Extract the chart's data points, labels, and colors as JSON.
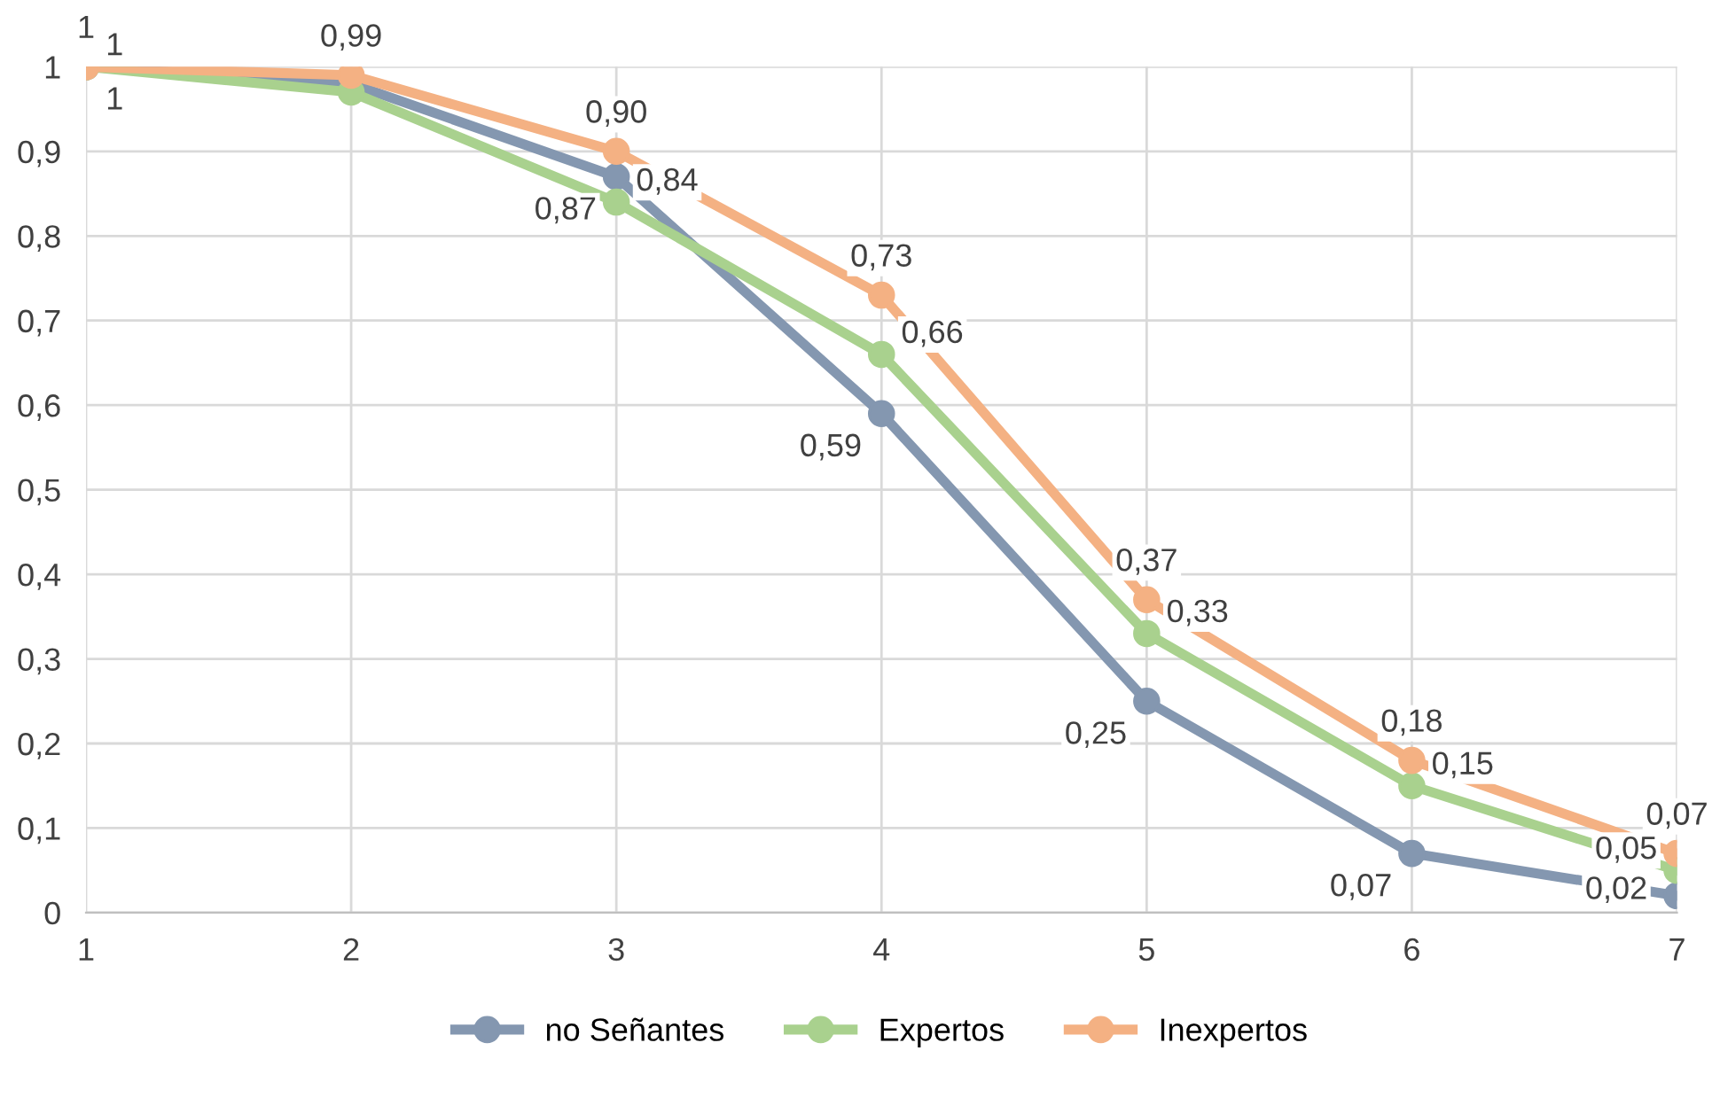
{
  "chart_data": {
    "type": "line",
    "categories": [
      "1",
      "2",
      "3",
      "4",
      "5",
      "6",
      "7"
    ],
    "series": [
      {
        "name": "no Señantes",
        "color": "#8497b0",
        "values": [
          1,
          0.98,
          0.87,
          0.59,
          0.25,
          0.07,
          0.02
        ],
        "value_labels": [
          "1",
          null,
          "0,87",
          "0,59",
          "0,25",
          "0,07",
          "0,02"
        ]
      },
      {
        "name": "Expertos",
        "color": "#a9d18e",
        "values": [
          1,
          0.97,
          0.84,
          0.66,
          0.33,
          0.15,
          0.05
        ],
        "value_labels": [
          "1",
          null,
          "0,84",
          "0,66",
          "0,33",
          "0,15",
          "0,05"
        ]
      },
      {
        "name": "Inexpertos",
        "color": "#f4b183",
        "values": [
          1,
          0.99,
          0.9,
          0.73,
          0.37,
          0.18,
          0.07
        ],
        "value_labels": [
          "1",
          "0,99",
          "0,90",
          "0,73",
          "0,37",
          "0,18",
          "0,07"
        ]
      }
    ],
    "ylim": [
      0,
      1
    ],
    "yticks": [
      {
        "value": 0,
        "label": "0"
      },
      {
        "value": 0.1,
        "label": "0,1"
      },
      {
        "value": 0.2,
        "label": "0,2"
      },
      {
        "value": 0.3,
        "label": "0,3"
      },
      {
        "value": 0.4,
        "label": "0,4"
      },
      {
        "value": 0.5,
        "label": "0,5"
      },
      {
        "value": 0.6,
        "label": "0,6"
      },
      {
        "value": 0.7,
        "label": "0,7"
      },
      {
        "value": 0.8,
        "label": "0,8"
      },
      {
        "value": 0.9,
        "label": "0,9"
      },
      {
        "value": 1,
        "label": "1"
      }
    ],
    "grid": true,
    "legend": "bottom",
    "marker": "circle",
    "line_style": "solid"
  }
}
